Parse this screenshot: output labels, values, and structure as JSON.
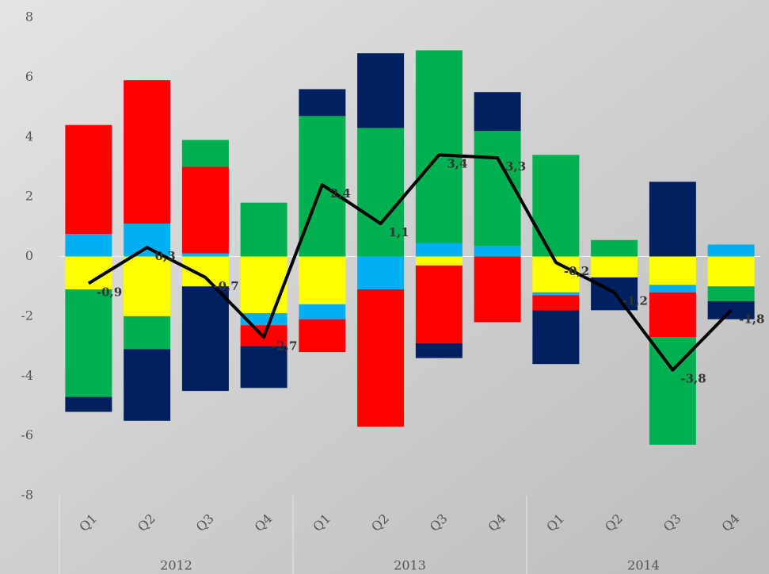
{
  "chart_data": {
    "type": "stacked-bar-line",
    "categories": [
      "Q1",
      "Q2",
      "Q3",
      "Q4",
      "Q1",
      "Q2",
      "Q3",
      "Q4",
      "Q1",
      "Q2",
      "Q3",
      "Q4"
    ],
    "x_groups": [
      "2012",
      "2013",
      "2014"
    ],
    "series": [
      {
        "color": "#ffff00",
        "values": [
          -1.1,
          -2.0,
          -1.0,
          -1.9,
          -1.6,
          null,
          -0.3,
          null,
          -1.2,
          -0.7,
          -0.95,
          -1.0
        ]
      },
      {
        "color": "#00b0f0",
        "values": [
          0.75,
          1.1,
          0.1,
          -0.4,
          -0.5,
          -1.1,
          0.45,
          0.35,
          -0.1,
          null,
          -0.25,
          0.4
        ]
      },
      {
        "color": "#ff0000",
        "values": [
          3.65,
          4.8,
          2.9,
          -0.7,
          -1.1,
          -4.6,
          -2.6,
          -2.2,
          -0.5,
          null,
          -1.5,
          null
        ]
      },
      {
        "color": "#00b050",
        "values": [
          -3.6,
          -1.1,
          0.9,
          1.8,
          4.7,
          4.3,
          6.45,
          3.85,
          3.4,
          0.55,
          -3.6,
          -0.5
        ]
      },
      {
        "color": "#002060",
        "values": [
          -0.5,
          -2.4,
          -3.5,
          -1.4,
          0.9,
          2.5,
          -0.5,
          1.3,
          -1.8,
          -1.1,
          2.5,
          -0.6
        ]
      }
    ],
    "line": {
      "color": "#000000",
      "values": [
        -0.9,
        0.3,
        -0.7,
        -2.7,
        2.4,
        1.1,
        3.4,
        3.3,
        -0.2,
        -1.2,
        -3.8,
        -1.8
      ],
      "value_labels": [
        "-0,9",
        "0,3",
        "-0,7",
        "-2,7",
        "2,4",
        "1,1",
        "3,4",
        "3,3",
        "-0,2",
        "-1,2",
        "-3,8",
        "-1,8"
      ]
    },
    "ylim": [
      -8,
      8
    ],
    "yticks": [
      -8,
      -6,
      -4,
      -2,
      0,
      2,
      4,
      6,
      8
    ],
    "grid": false
  }
}
